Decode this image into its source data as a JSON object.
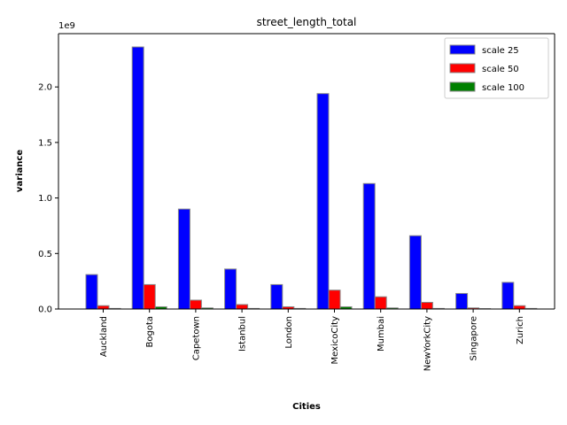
{
  "chart_data": {
    "type": "bar",
    "title": "street_length_total",
    "xlabel": "Cities",
    "ylabel": "variance",
    "offset_label": "1e9",
    "categories": [
      "Auckland",
      "Bogota",
      "Capetown",
      "Istanbul",
      "London",
      "MexicoCity",
      "Mumbai",
      "NewYorkCity",
      "Singapore",
      "Zurich"
    ],
    "series": [
      {
        "name": "scale 25",
        "color": "#0000ff",
        "values": [
          0.31,
          2.36,
          0.9,
          0.36,
          0.22,
          1.94,
          1.13,
          0.66,
          0.14,
          0.24
        ]
      },
      {
        "name": "scale 50",
        "color": "#ff0000",
        "values": [
          0.03,
          0.22,
          0.08,
          0.04,
          0.02,
          0.17,
          0.11,
          0.06,
          0.01,
          0.03
        ]
      },
      {
        "name": "scale 100",
        "color": "#008000",
        "values": [
          0.005,
          0.02,
          0.01,
          0.005,
          0.005,
          0.02,
          0.01,
          0.005,
          0.003,
          0.005
        ]
      }
    ],
    "yticks": [
      "0.0",
      "0.5",
      "1.0",
      "1.5",
      "2.0"
    ],
    "ylim": [
      0,
      2.48
    ],
    "grid": false,
    "legend_position": "top-right"
  }
}
